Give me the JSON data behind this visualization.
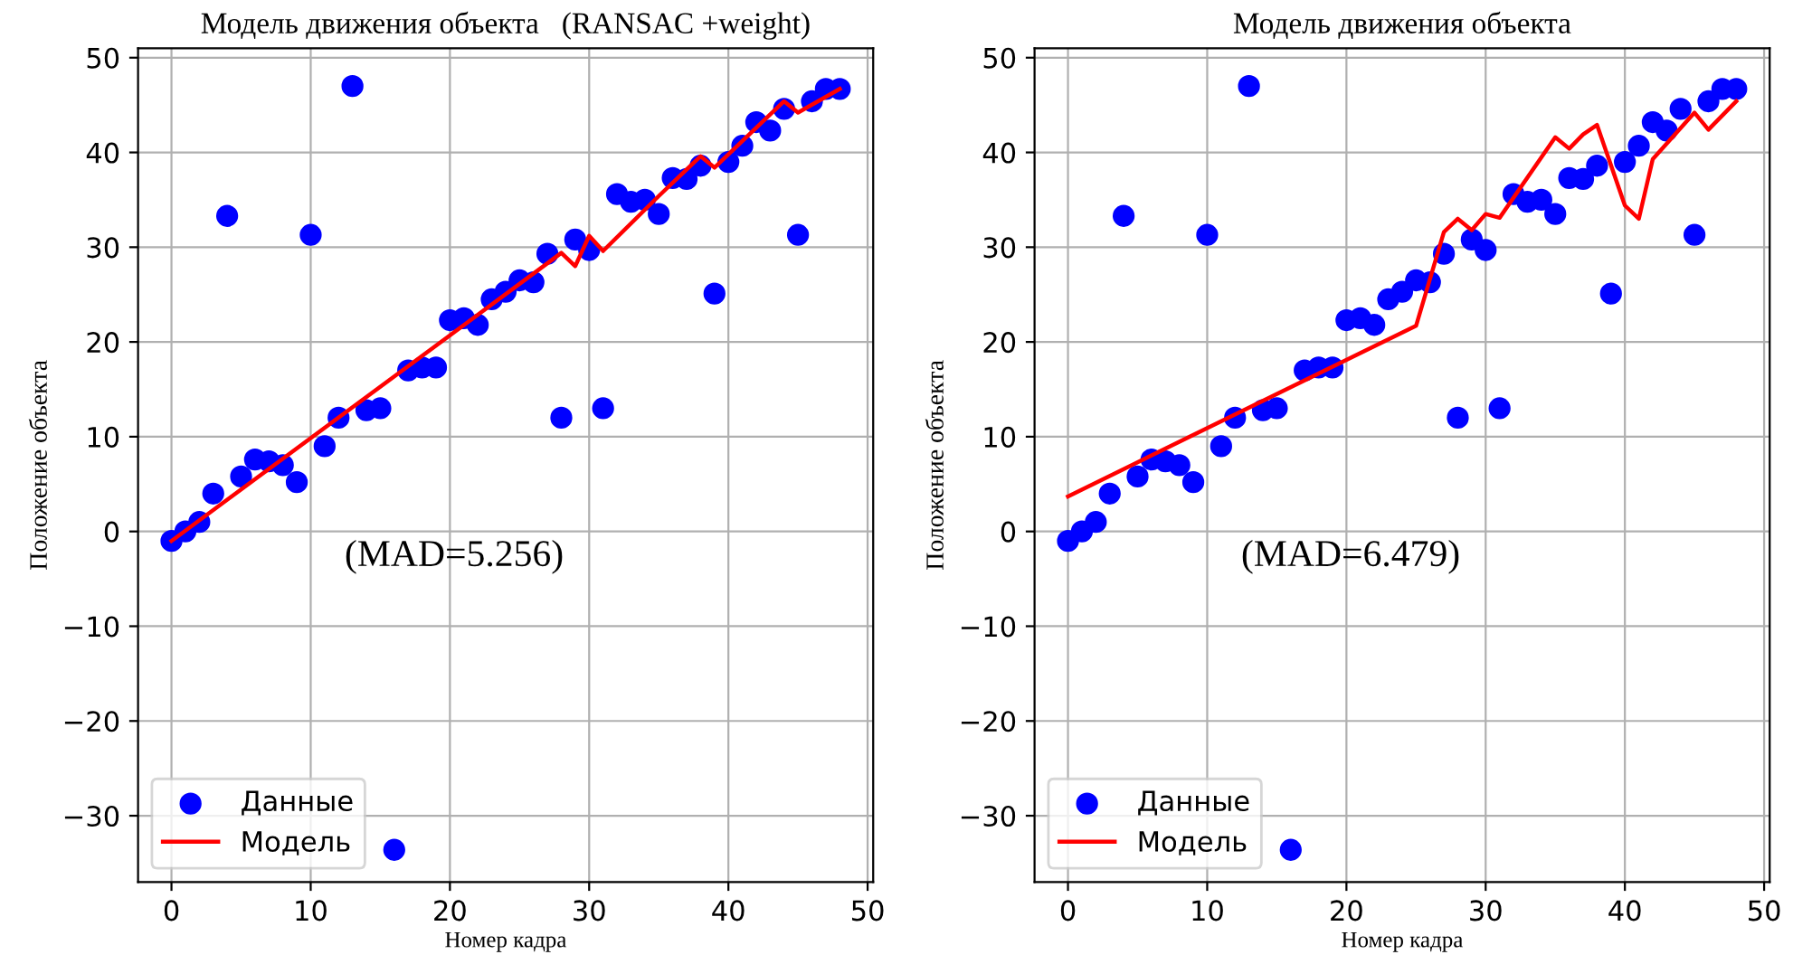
{
  "chart_data": [
    {
      "type": "scatter",
      "title": "Модель движения объекта   (RANSAC +weight)",
      "xlabel": "Номер кадра",
      "ylabel": "Положение объекта",
      "xlim": [
        -2.4,
        50.4
      ],
      "xticks": [
        0,
        10,
        20,
        30,
        40,
        50
      ],
      "ylim": [
        -37,
        51
      ],
      "yticks": [
        -30,
        -20,
        -10,
        0,
        10,
        20,
        30,
        40,
        50
      ],
      "grid": true,
      "legend": "bottom left",
      "annotations": [
        "(MAD=5.256)"
      ],
      "series": [
        {
          "name": "Данные",
          "marker": "circle",
          "color": "#0000ff",
          "x": [
            0,
            1,
            2,
            3,
            4,
            5,
            6,
            7,
            8,
            9,
            10,
            11,
            12,
            13,
            14,
            15,
            16,
            17,
            18,
            19,
            20,
            21,
            22,
            23,
            24,
            25,
            26,
            27,
            28,
            29,
            30,
            31,
            32,
            33,
            34,
            35,
            36,
            37,
            38,
            39,
            40,
            41,
            42,
            43,
            44,
            45,
            46,
            47,
            48
          ],
          "values": [
            -1,
            0,
            1,
            4,
            33.3,
            5.8,
            7.6,
            7.4,
            7,
            5.2,
            31.3,
            9,
            12,
            47,
            12.8,
            13,
            -33.6,
            17,
            17.3,
            17.3,
            22.3,
            22.5,
            21.8,
            24.5,
            25.3,
            26.5,
            26.3,
            29.3,
            12,
            30.8,
            29.7,
            13,
            35.6,
            34.8,
            35,
            33.5,
            37.3,
            37.2,
            38.6,
            25.1,
            39,
            40.7,
            43.2,
            42.3,
            44.6,
            31.3,
            45.4,
            46.7,
            46.7
          ]
        },
        {
          "name": "Модель",
          "type": "line",
          "marker": "none",
          "line_style": "solid",
          "color": "#ff0000",
          "x": [
            0,
            27,
            28,
            29,
            30,
            31,
            35,
            38,
            39,
            44,
            45,
            48
          ],
          "values": [
            -1,
            28.3,
            29.4,
            28,
            31.2,
            29.6,
            35.4,
            39.6,
            38.4,
            45.4,
            44.2,
            46.7
          ]
        }
      ]
    },
    {
      "type": "scatter",
      "title": "Модель движения объекта",
      "xlabel": "Номер кадра",
      "ylabel": "Положение объекта",
      "xlim": [
        -2.4,
        50.4
      ],
      "xticks": [
        0,
        10,
        20,
        30,
        40,
        50
      ],
      "ylim": [
        -37,
        51
      ],
      "yticks": [
        -30,
        -20,
        -10,
        0,
        10,
        20,
        30,
        40,
        50
      ],
      "grid": true,
      "legend": "bottom left",
      "annotations": [
        "(MAD=6.479)"
      ],
      "series": [
        {
          "name": "Данные",
          "marker": "circle",
          "color": "#0000ff",
          "x": [
            0,
            1,
            2,
            3,
            4,
            5,
            6,
            7,
            8,
            9,
            10,
            11,
            12,
            13,
            14,
            15,
            16,
            17,
            18,
            19,
            20,
            21,
            22,
            23,
            24,
            25,
            26,
            27,
            28,
            29,
            30,
            31,
            32,
            33,
            34,
            35,
            36,
            37,
            38,
            39,
            40,
            41,
            42,
            43,
            44,
            45,
            46,
            47,
            48
          ],
          "values": [
            -1,
            0,
            1,
            4,
            33.3,
            5.8,
            7.6,
            7.4,
            7,
            5.2,
            31.3,
            9,
            12,
            47,
            12.8,
            13,
            -33.6,
            17,
            17.3,
            17.3,
            22.3,
            22.5,
            21.8,
            24.5,
            25.3,
            26.5,
            26.3,
            29.3,
            12,
            30.8,
            29.7,
            13,
            35.6,
            34.8,
            35,
            33.5,
            37.3,
            37.2,
            38.6,
            25.1,
            39,
            40.7,
            43.2,
            42.3,
            44.6,
            31.3,
            45.4,
            46.7,
            46.7
          ]
        },
        {
          "name": "Модель",
          "type": "line",
          "marker": "none",
          "line_style": "solid",
          "color": "#ff0000",
          "x": [
            0,
            25,
            27,
            28,
            29,
            30,
            31,
            35,
            36,
            37,
            38,
            40,
            41,
            42,
            45,
            46,
            48
          ],
          "values": [
            3.7,
            21.7,
            31.6,
            33,
            31.8,
            33.5,
            33.1,
            41.6,
            40.4,
            41.9,
            42.9,
            34.4,
            33,
            39.3,
            44.2,
            42.4,
            45.4
          ]
        }
      ]
    }
  ]
}
